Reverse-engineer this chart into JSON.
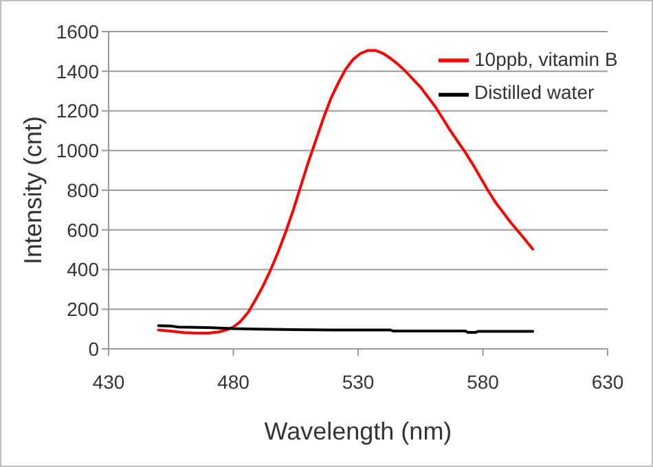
{
  "chart_data": {
    "type": "line",
    "xlabel": "Wavelength (nm)",
    "ylabel": "Intensity (cnt)",
    "xlim": [
      430,
      630
    ],
    "xticks": [
      430,
      480,
      530,
      580,
      630
    ],
    "ylim": [
      0,
      1600
    ],
    "yticks": [
      0,
      200,
      400,
      600,
      800,
      1000,
      1200,
      1400,
      1600
    ],
    "grid": "y",
    "legend": "top right",
    "series": [
      {
        "name": "10ppb, vitamin B",
        "color": "#ff0000",
        "x": [
          450,
          453,
          456,
          460,
          465,
          470,
          474,
          477,
          480,
          483,
          486,
          489,
          492,
          495,
          498,
          501,
          504,
          507,
          510,
          513,
          516,
          519,
          522,
          525,
          528,
          531,
          534,
          537,
          540,
          543,
          546,
          549,
          552,
          555,
          558,
          561,
          564,
          567,
          570,
          573,
          576,
          579,
          582,
          585,
          588,
          591,
          594,
          597,
          600
        ],
        "values": [
          95,
          92,
          88,
          82,
          80,
          80,
          85,
          95,
          110,
          140,
          185,
          250,
          320,
          400,
          490,
          590,
          700,
          820,
          940,
          1050,
          1160,
          1260,
          1340,
          1410,
          1460,
          1490,
          1505,
          1505,
          1490,
          1465,
          1435,
          1400,
          1360,
          1320,
          1270,
          1220,
          1160,
          1100,
          1045,
          990,
          930,
          865,
          800,
          740,
          690,
          640,
          595,
          550,
          503
        ]
      },
      {
        "name": "Distilled water",
        "color": "#000000",
        "x": [
          450,
          455,
          458,
          470,
          480,
          490,
          505,
          520,
          543,
          544,
          560,
          573,
          574,
          577,
          578,
          600
        ],
        "values": [
          117,
          115,
          110,
          107,
          102,
          100,
          97,
          95,
          95,
          90,
          90,
          90,
          83,
          83,
          88,
          88
        ]
      }
    ]
  }
}
